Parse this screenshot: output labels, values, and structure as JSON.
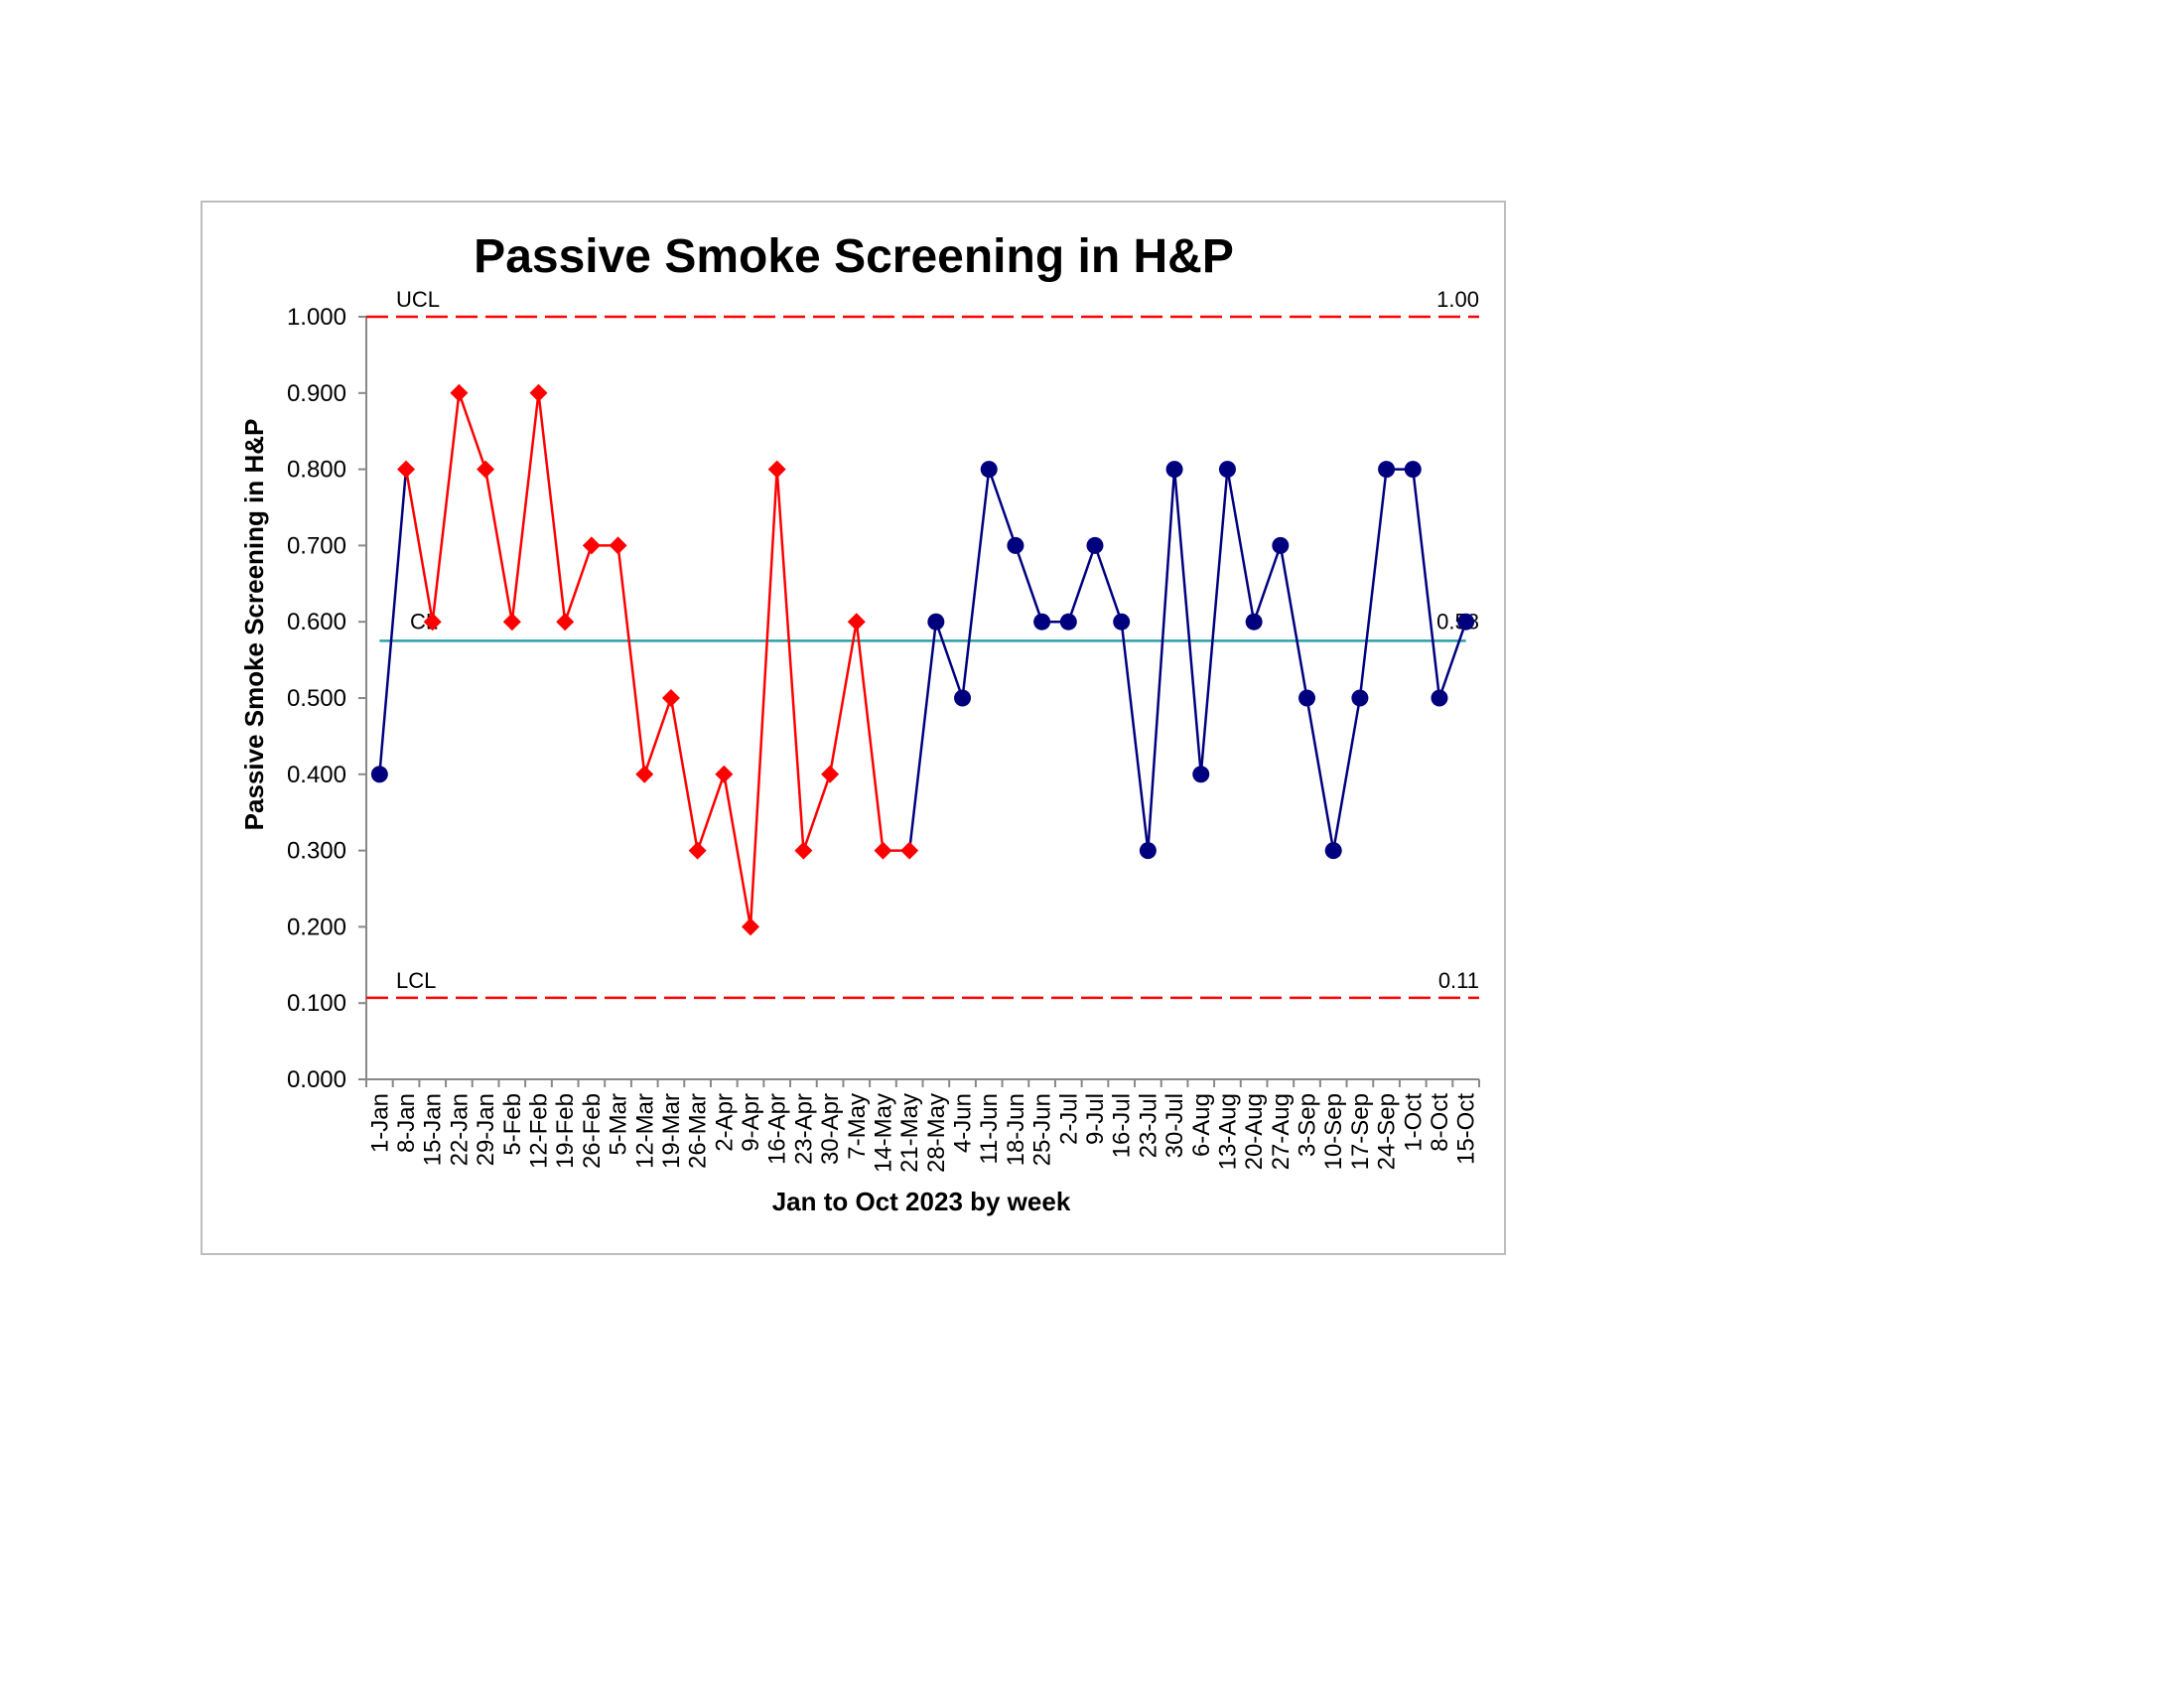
{
  "chart_data": {
    "type": "line",
    "title": "Passive Smoke Screening in H&P",
    "xlabel": "Jan to Oct 2023 by week",
    "ylabel": "Passive Smoke Screening in H&P",
    "ylim": [
      0,
      1
    ],
    "yticks": [
      "0.000",
      "0.100",
      "0.200",
      "0.300",
      "0.400",
      "0.500",
      "0.600",
      "0.700",
      "0.800",
      "0.900",
      "1.000"
    ],
    "categories": [
      "1-Jan",
      "8-Jan",
      "15-Jan",
      "22-Jan",
      "29-Jan",
      "5-Feb",
      "12-Feb",
      "19-Feb",
      "26-Feb",
      "5-Mar",
      "12-Mar",
      "19-Mar",
      "26-Mar",
      "2-Apr",
      "9-Apr",
      "16-Apr",
      "23-Apr",
      "30-Apr",
      "7-May",
      "14-May",
      "21-May",
      "28-May",
      "4-Jun",
      "11-Jun",
      "18-Jun",
      "25-Jun",
      "2-Jul",
      "9-Jul",
      "16-Jul",
      "23-Jul",
      "30-Jul",
      "6-Aug",
      "13-Aug",
      "20-Aug",
      "27-Aug",
      "3-Sep",
      "10-Sep",
      "17-Sep",
      "24-Sep",
      "1-Oct",
      "8-Oct",
      "15-Oct"
    ],
    "values": [
      0.4,
      0.8,
      0.6,
      0.9,
      0.8,
      0.6,
      0.9,
      0.6,
      0.7,
      0.7,
      0.4,
      0.5,
      0.3,
      0.4,
      0.2,
      0.8,
      0.3,
      0.4,
      0.6,
      0.3,
      0.3,
      0.6,
      0.5,
      0.8,
      0.7,
      0.6,
      0.6,
      0.7,
      0.6,
      0.3,
      0.8,
      0.4,
      0.8,
      0.6,
      0.7,
      0.5,
      0.3,
      0.5,
      0.8,
      0.8,
      0.5,
      0.6
    ],
    "flagged_range": [
      1,
      20
    ],
    "control_limits": {
      "ucl": {
        "label": "UCL",
        "value": 1.0,
        "value_label": "1.00"
      },
      "cl": {
        "label": "CL",
        "value": 0.575,
        "value_label": "0.58"
      },
      "lcl": {
        "label": "LCL",
        "value": 0.107,
        "value_label": "0.11"
      }
    },
    "grid": false,
    "legend": "none"
  },
  "colors": {
    "normal_series": "#00007f",
    "signal_series": "#ff0000",
    "center_line": "#2aa0a8",
    "control_limits": "#ff0000",
    "frame_border": "#bdbdbd"
  },
  "marker_shapes": {
    "normal": "circle",
    "signal": "diamond"
  }
}
